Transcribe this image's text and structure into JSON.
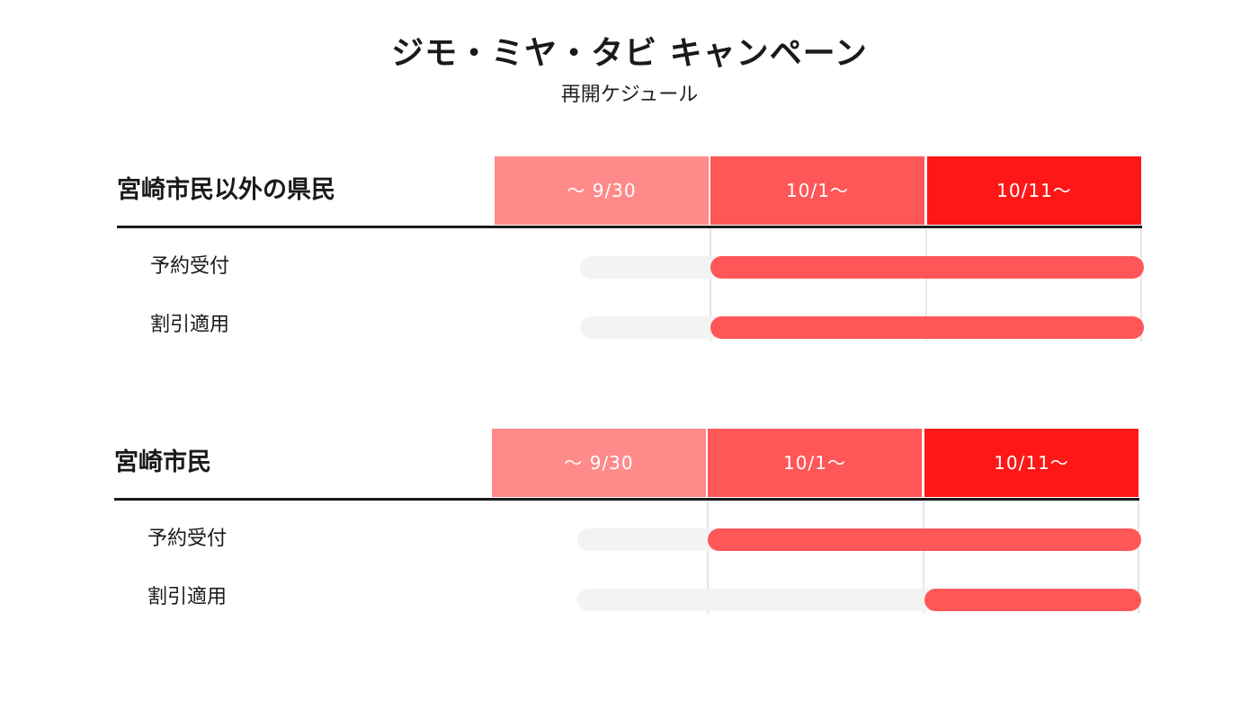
{
  "title": "ジモ・ミヤ・タビ キャンペーン",
  "subtitle": "再開ケジュール",
  "colors": {
    "period_before": "#ff8a8a",
    "period_mid": "#ff5758",
    "period_late": "#ff1717",
    "bar": "#ff5758",
    "track": "#f3f3f3"
  },
  "groups": [
    {
      "label": "宮崎市民以外の県民",
      "periods": [
        "～ 9/30",
        "10/1～",
        "10/11～"
      ],
      "rows": [
        {
          "label": "予約受付",
          "start_period": 1
        },
        {
          "label": "割引適用",
          "start_period": 1
        }
      ]
    },
    {
      "label": "宮崎市民",
      "periods": [
        "～ 9/30",
        "10/1～",
        "10/11～"
      ],
      "rows": [
        {
          "label": "予約受付",
          "start_period": 1
        },
        {
          "label": "割引適用",
          "start_period": 2
        }
      ]
    }
  ]
}
